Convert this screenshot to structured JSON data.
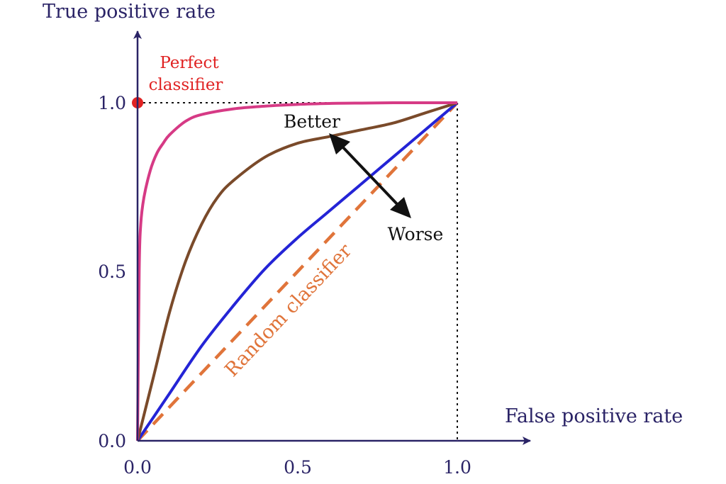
{
  "chart_data": {
    "type": "line",
    "xlabel": "False positive rate",
    "ylabel": "True positive rate",
    "xlim": [
      0,
      1
    ],
    "ylim": [
      0,
      1
    ],
    "xticks": [
      "0.0",
      "0.5",
      "1.0"
    ],
    "yticks": [
      "0.0",
      "0.5",
      "1.0"
    ],
    "grid": false,
    "series": [
      {
        "color": "#d63a85",
        "x": [
          0,
          0.005,
          0.01,
          0.02,
          0.04,
          0.06,
          0.08,
          0.1,
          0.15,
          0.2,
          0.3,
          0.4,
          0.5,
          0.6,
          0.7,
          0.8,
          0.9,
          1.0
        ],
        "y": [
          0,
          0.5,
          0.64,
          0.72,
          0.8,
          0.85,
          0.88,
          0.905,
          0.945,
          0.965,
          0.982,
          0.99,
          0.995,
          0.998,
          0.999,
          1.0,
          1.0,
          1.0
        ]
      },
      {
        "color": "#7a4a2a",
        "x": [
          0,
          0.05,
          0.1,
          0.15,
          0.2,
          0.25,
          0.3,
          0.4,
          0.5,
          0.6,
          0.7,
          0.8,
          0.9,
          1.0
        ],
        "y": [
          0,
          0.19,
          0.38,
          0.53,
          0.64,
          0.72,
          0.77,
          0.84,
          0.88,
          0.9,
          0.92,
          0.94,
          0.97,
          1.0
        ]
      },
      {
        "color": "#2424d6",
        "x": [
          0,
          0.05,
          0.1,
          0.2,
          0.3,
          0.4,
          0.5,
          0.6,
          0.7,
          0.8,
          0.9,
          1.0
        ],
        "y": [
          0,
          0.07,
          0.14,
          0.28,
          0.4,
          0.51,
          0.6,
          0.68,
          0.76,
          0.84,
          0.92,
          1.0
        ]
      },
      {
        "name": "Random classifier",
        "color": "#e0743a",
        "style": "dashed",
        "x": [
          0,
          1
        ],
        "y": [
          0,
          1
        ]
      }
    ],
    "annotations": {
      "perfect": {
        "text": [
          "Perfect",
          "classifier"
        ],
        "x": 0,
        "y": 1,
        "color": "#e02222"
      },
      "better": "Better",
      "worse": "Worse"
    }
  }
}
